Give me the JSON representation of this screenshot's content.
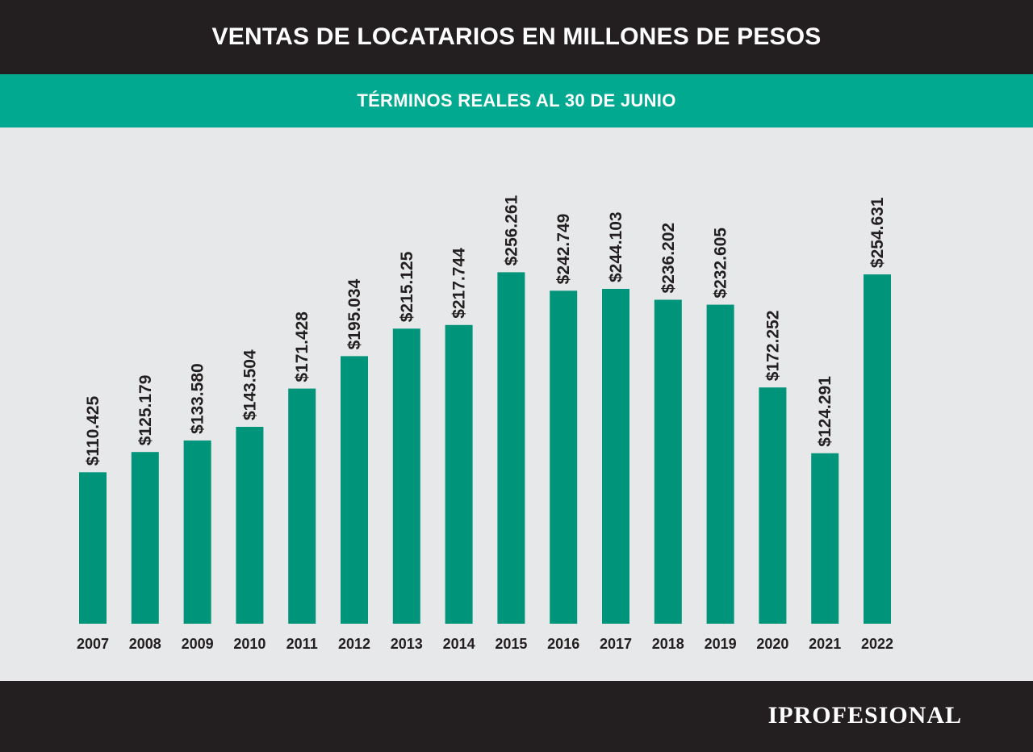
{
  "header": {
    "title": "VENTAS DE LOCATARIOS EN MILLONES DE PESOS"
  },
  "subheader": {
    "subtitle": "TÉRMINOS REALES AL 30 DE JUNIO"
  },
  "footer": {
    "brand": "IPROFESIONAL"
  },
  "colors": {
    "header_bg": "#231f20",
    "accent": "#00a98f",
    "bar": "#00957a",
    "background": "#e7e8e9"
  },
  "chart_data": {
    "type": "bar",
    "title": "VENTAS DE LOCATARIOS EN MILLONES DE PESOS",
    "subtitle": "TÉRMINOS REALES AL 30 DE JUNIO",
    "xlabel": "",
    "ylabel": "",
    "grid": false,
    "categories": [
      "2007",
      "2008",
      "2009",
      "2010",
      "2011",
      "2012",
      "2013",
      "2014",
      "2015",
      "2016",
      "2017",
      "2018",
      "2019",
      "2020",
      "2021",
      "2022"
    ],
    "values": [
      110425,
      125179,
      133580,
      143504,
      171428,
      195034,
      215125,
      217744,
      256261,
      242749,
      244103,
      236202,
      232605,
      172252,
      124291,
      254631
    ],
    "value_labels": [
      "$110.425",
      "$125.179",
      "$133.580",
      "$143.504",
      "$171.428",
      "$195.034",
      "$215.125",
      "$217.744",
      "$256.261",
      "$242.749",
      "$244.103",
      "$236.202",
      "$232.605",
      "$172.252",
      "$124.291",
      "$254.631"
    ]
  }
}
